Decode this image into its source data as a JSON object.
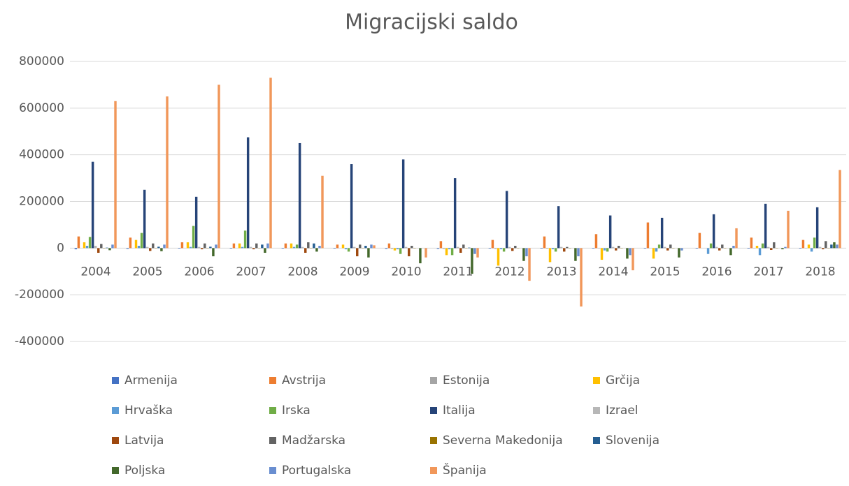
{
  "chart_data": {
    "type": "bar",
    "title": "Migracijski saldo",
    "categories": [
      "2004",
      "2005",
      "2006",
      "2007",
      "2008",
      "2009",
      "2010",
      "2011",
      "2012",
      "2013",
      "2014",
      "2015",
      "2016",
      "2017",
      "2018"
    ],
    "ylim": [
      -400000,
      800000
    ],
    "yticks": [
      -400000,
      -200000,
      0,
      200000,
      400000,
      600000,
      800000
    ],
    "grid": true,
    "legend": "bottom",
    "series": [
      {
        "name": "Armenija",
        "color": "#4472c4",
        "values": [
          -5000,
          -3000,
          -2000,
          -2000,
          -2000,
          -2000,
          -3000,
          -3000,
          -2000,
          -2000,
          -2000,
          -2000,
          -2000,
          -2000,
          -2000
        ]
      },
      {
        "name": "Avstrija",
        "color": "#ed7d31",
        "values": [
          50000,
          45000,
          25000,
          20000,
          20000,
          15000,
          20000,
          30000,
          35000,
          50000,
          60000,
          110000,
          65000,
          45000,
          35000
        ]
      },
      {
        "name": "Estonija",
        "color": "#a5a5a5",
        "values": [
          0,
          0,
          0,
          0,
          0,
          0,
          -3000,
          -3000,
          -3000,
          -2000,
          -1000,
          0,
          0,
          1000,
          1000
        ]
      },
      {
        "name": "Grčija",
        "color": "#ffc000",
        "values": [
          25000,
          35000,
          25000,
          20000,
          20000,
          15000,
          -10000,
          -30000,
          -75000,
          -60000,
          -50000,
          -45000,
          0,
          10000,
          15000
        ]
      },
      {
        "name": "Hrvaška",
        "color": "#5b9bd5",
        "values": [
          10000,
          10000,
          5000,
          5000,
          5000,
          -5000,
          -5000,
          -5000,
          -5000,
          -5000,
          -10000,
          -15000,
          -25000,
          -30000,
          -15000
        ]
      },
      {
        "name": "Irska",
        "color": "#70ad47",
        "values": [
          48000,
          65000,
          95000,
          75000,
          15000,
          -15000,
          -25000,
          -30000,
          -15000,
          -15000,
          -15000,
          15000,
          20000,
          20000,
          45000
        ]
      },
      {
        "name": "Italija",
        "color": "#264478",
        "values": [
          370000,
          250000,
          220000,
          475000,
          450000,
          360000,
          380000,
          300000,
          245000,
          180000,
          140000,
          130000,
          145000,
          190000,
          175000
        ]
      },
      {
        "name": "Izrael",
        "color": "#b7b7b7",
        "values": [
          10000,
          5000,
          5000,
          5000,
          5000,
          5000,
          5000,
          5000,
          5000,
          5000,
          5000,
          5000,
          5000,
          5000,
          5000
        ]
      },
      {
        "name": "Latvija",
        "color": "#9e480e",
        "values": [
          -20000,
          -12000,
          -5000,
          -5000,
          -20000,
          -35000,
          -35000,
          -20000,
          -12000,
          -15000,
          -10000,
          -10000,
          -10000,
          -8000,
          -5000
        ]
      },
      {
        "name": "Madžarska",
        "color": "#636363",
        "values": [
          18000,
          20000,
          20000,
          20000,
          25000,
          15000,
          10000,
          15000,
          10000,
          5000,
          10000,
          15000,
          15000,
          25000,
          30000
        ]
      },
      {
        "name": "Severna Makedonija",
        "color": "#997300",
        "values": [
          -1000,
          -1000,
          -1000,
          -1000,
          -1000,
          -1000,
          -1000,
          -1000,
          -1000,
          -1000,
          -1000,
          -1000,
          -1000,
          -1000,
          -1000
        ]
      },
      {
        "name": "Slovenija",
        "color": "#255e91",
        "values": [
          2000,
          6000,
          6000,
          15000,
          20000,
          10000,
          0,
          2000,
          0,
          0,
          0,
          0,
          0,
          0,
          15000
        ]
      },
      {
        "name": "Poljska",
        "color": "#43682b",
        "values": [
          -9000,
          -13000,
          -35000,
          -20000,
          -15000,
          -40000,
          -65000,
          -110000,
          -55000,
          -55000,
          -45000,
          -40000,
          -30000,
          -5000,
          25000
        ]
      },
      {
        "name": "Portugalska",
        "color": "#698ed0",
        "values": [
          15000,
          15000,
          15000,
          20000,
          10000,
          15000,
          0,
          -25000,
          -35000,
          -35000,
          -30000,
          -10000,
          10000,
          5000,
          15000
        ]
      },
      {
        "name": "Španija",
        "color": "#f1975a",
        "values": [
          630000,
          650000,
          700000,
          730000,
          310000,
          12000,
          -40000,
          -40000,
          -140000,
          -250000,
          -95000,
          0,
          85000,
          160000,
          335000
        ]
      }
    ]
  }
}
